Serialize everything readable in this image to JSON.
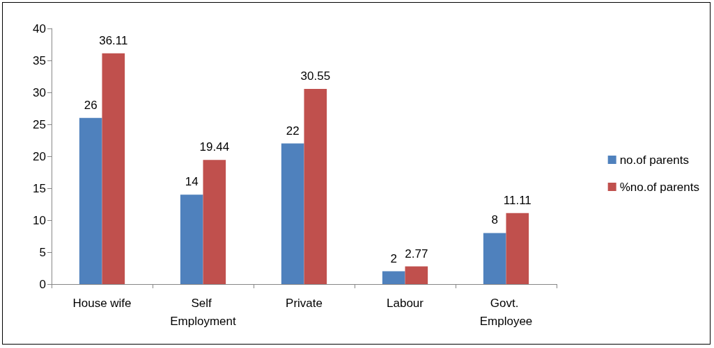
{
  "chart_data": {
    "type": "bar",
    "categories": [
      "House wife",
      "Self Employment",
      "Private",
      "Labour",
      "Govt. Employee"
    ],
    "series": [
      {
        "name": "no.of parents",
        "color": "#4f81bd",
        "values": [
          26,
          14,
          22,
          2,
          8
        ]
      },
      {
        "name": "%no.of parents",
        "color": "#c0504d",
        "values": [
          36.11,
          19.44,
          30.55,
          2.77,
          11.11
        ]
      }
    ],
    "ylim": [
      0,
      40
    ],
    "yticks": [
      0,
      5,
      10,
      15,
      20,
      25,
      30,
      35,
      40
    ],
    "grid": false,
    "legend": "right",
    "data_labels": true
  }
}
